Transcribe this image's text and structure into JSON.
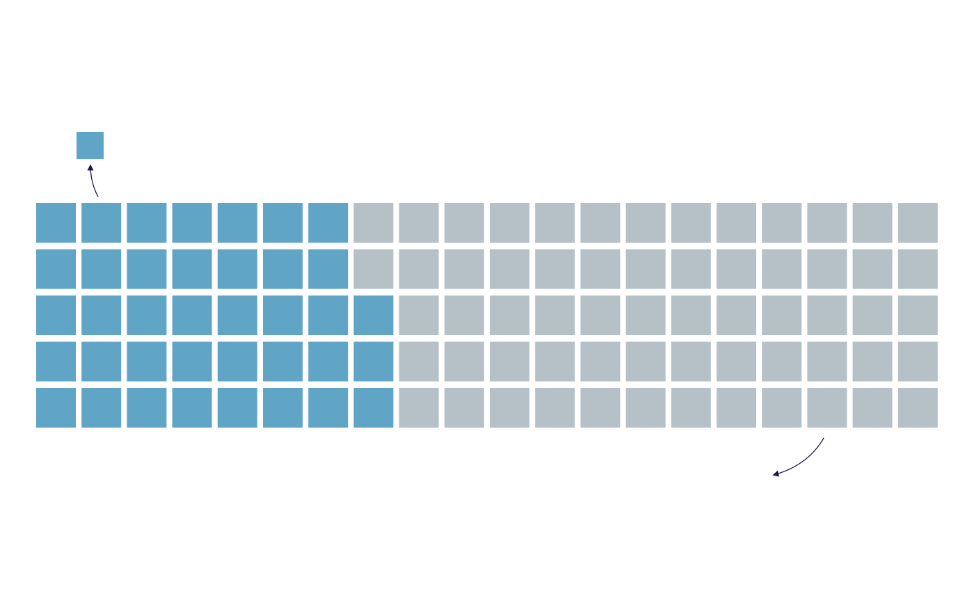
{
  "colors": {
    "background": "#ffffff",
    "highlight": "#60a5c5",
    "base": "#b5c0c7",
    "arrow": "#1d1550"
  },
  "chart_data": {
    "type": "waffle",
    "layout": "column-major",
    "rows": 5,
    "columns": 20,
    "total_units": 100,
    "highlighted_units": 38,
    "highlighted_share_percent": 38,
    "legend_unit": {
      "count": 1,
      "color_role": "highlight"
    }
  },
  "annotations": [
    {
      "target": "legend-unit",
      "style": "curved-arrow"
    },
    {
      "target": "grid-bottom-right",
      "style": "curved-arrow"
    }
  ]
}
